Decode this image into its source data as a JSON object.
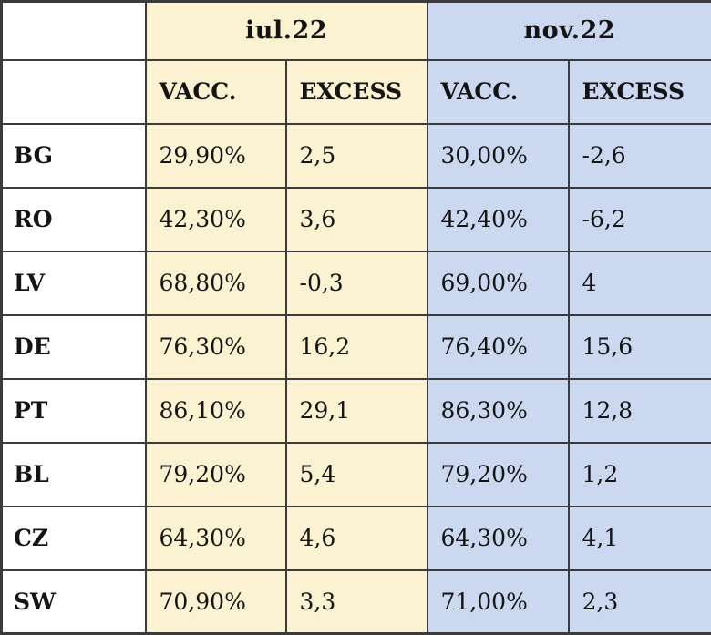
{
  "colors": {
    "iul_group_bg": "#FBF2D1",
    "nov_group_bg": "#CBD8EF",
    "border": "#3B3B3B",
    "text": "#141414",
    "label_col_bg": "#FFFFFF"
  },
  "chart_data": {
    "type": "table",
    "col_groups": [
      {
        "label": "iul.22"
      },
      {
        "label": "nov.22"
      }
    ],
    "sub_headers": [
      "VACC.",
      "EXCESS",
      "VACC.",
      "EXCESS"
    ],
    "rows": [
      {
        "label": "BG",
        "cells": [
          "29,90%",
          "2,5",
          "30,00%",
          "-2,6"
        ]
      },
      {
        "label": "RO",
        "cells": [
          "42,30%",
          "3,6",
          "42,40%",
          "-6,2"
        ]
      },
      {
        "label": "LV",
        "cells": [
          "68,80%",
          "-0,3",
          "69,00%",
          "4"
        ]
      },
      {
        "label": "DE",
        "cells": [
          "76,30%",
          "16,2",
          "76,40%",
          "15,6"
        ]
      },
      {
        "label": "PT",
        "cells": [
          "86,10%",
          "29,1",
          "86,30%",
          "12,8"
        ]
      },
      {
        "label": "BL",
        "cells": [
          "79,20%",
          "5,4",
          "79,20%",
          "1,2"
        ]
      },
      {
        "label": "CZ",
        "cells": [
          "64,30%",
          "4,6",
          "64,30%",
          "4,1"
        ]
      },
      {
        "label": "SW",
        "cells": [
          "70,90%",
          "3,3",
          "71,00%",
          "2,3"
        ]
      }
    ]
  }
}
